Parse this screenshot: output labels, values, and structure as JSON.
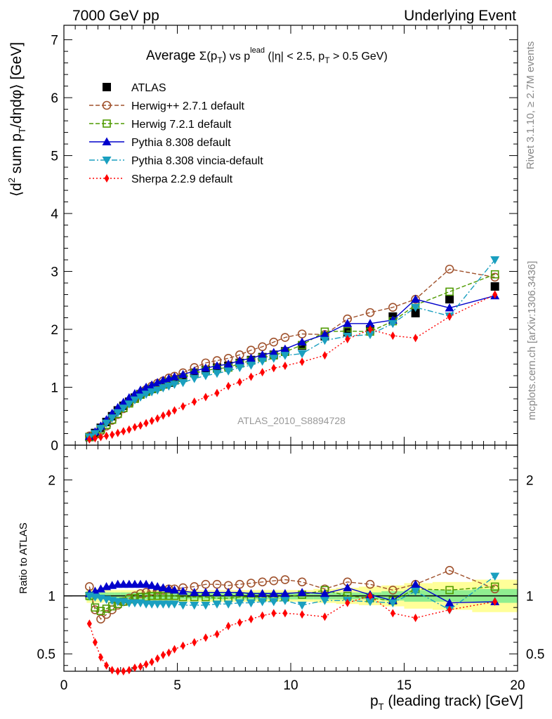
{
  "header": {
    "left": "7000 GeV pp",
    "right": "Underlying Event"
  },
  "side": {
    "rivet": "Rivet 3.1.10, ≥ 2.7M events",
    "mcplots": "mcplots.cern.ch [arXiv:1306.3436]"
  },
  "colors": {
    "atlas": "#000000",
    "herwigpp": "#a0522d",
    "herwig7": "#4f9a00",
    "pythia": "#0000cc",
    "vincia": "#1a9fbf",
    "sherpa": "#ff0000",
    "band_outer": "#ffff99",
    "band_inner": "#90ee90"
  },
  "chart_data": [
    {
      "type": "line",
      "title": "Average Σ(p_T) vs p_T^lead (|η| < 2.5, p_T > 0.5 GeV)",
      "title_parts": {
        "lead": "Average ",
        "sigma": "Σ(p",
        "sub_T": "T",
        "close": ")",
        "vs": " vs p",
        "sup_lead": "lead",
        "tail": " (|η| < 2.5, p",
        "tail_end": " > 0.5 GeV)"
      },
      "ylabel": "⟨d² sum p_T/dηdφ⟩ [GeV]",
      "ylabel_parts": {
        "open": "⟨d",
        "sup2": "2",
        "mid": " sum p",
        "sub_T": "T",
        "close": "/dηdφ⟩ [GeV]"
      },
      "watermark": "ATLAS_2010_S8894728",
      "xlim": [
        0,
        20
      ],
      "ylim": [
        0,
        7.25
      ],
      "yticks": [
        0,
        1,
        2,
        3,
        4,
        5,
        6,
        7
      ],
      "legend_position": "top-left",
      "grid": false,
      "x": [
        1.125,
        1.375,
        1.625,
        1.875,
        2.125,
        2.375,
        2.625,
        2.875,
        3.125,
        3.375,
        3.625,
        3.875,
        4.125,
        4.375,
        4.625,
        4.875,
        5.25,
        5.75,
        6.25,
        6.75,
        7.25,
        7.75,
        8.25,
        8.75,
        9.25,
        9.75,
        10.5,
        11.5,
        12.5,
        13.5,
        14.5,
        15.5,
        17.0,
        19.0
      ],
      "series": [
        {
          "name": "ATLAS",
          "key": "atlas",
          "marker": "square-filled",
          "values": [
            0.14,
            0.21,
            0.3,
            0.4,
            0.5,
            0.6,
            0.68,
            0.75,
            0.82,
            0.88,
            0.93,
            0.97,
            1.01,
            1.05,
            1.08,
            1.12,
            1.17,
            1.25,
            1.3,
            1.34,
            1.37,
            1.42,
            1.47,
            1.52,
            1.56,
            1.62,
            1.72,
            1.88,
            1.95,
            2.0,
            2.22,
            2.28,
            2.52,
            2.74
          ]
        },
        {
          "name": "Herwig++ 2.7.1 default",
          "key": "herwigpp",
          "marker": "circle-open",
          "dash": "6,3",
          "values": [
            0.16,
            0.19,
            0.24,
            0.33,
            0.43,
            0.53,
            0.63,
            0.73,
            0.81,
            0.89,
            0.96,
            1.02,
            1.07,
            1.11,
            1.16,
            1.19,
            1.25,
            1.34,
            1.42,
            1.46,
            1.5,
            1.56,
            1.64,
            1.7,
            1.78,
            1.86,
            1.92,
            1.91,
            2.18,
            2.29,
            2.38,
            2.52,
            3.04,
            2.9
          ]
        },
        {
          "name": "Herwig 7.2.1 default",
          "key": "herwig7",
          "marker": "square-open",
          "dash": "6,3",
          "values": [
            0.14,
            0.19,
            0.27,
            0.35,
            0.44,
            0.54,
            0.64,
            0.72,
            0.8,
            0.87,
            0.92,
            0.97,
            1.01,
            1.05,
            1.09,
            1.12,
            1.16,
            1.24,
            1.29,
            1.32,
            1.34,
            1.41,
            1.46,
            1.51,
            1.55,
            1.61,
            1.73,
            1.96,
            1.97,
            1.96,
            2.14,
            2.42,
            2.65,
            2.95
          ]
        },
        {
          "name": "Pythia 8.308 default",
          "key": "pythia",
          "marker": "triangle-up",
          "dash": "",
          "values": [
            0.15,
            0.23,
            0.33,
            0.44,
            0.55,
            0.65,
            0.74,
            0.82,
            0.89,
            0.95,
            1.0,
            1.04,
            1.08,
            1.12,
            1.15,
            1.18,
            1.22,
            1.28,
            1.33,
            1.37,
            1.4,
            1.46,
            1.5,
            1.56,
            1.6,
            1.66,
            1.78,
            1.91,
            2.1,
            2.1,
            2.16,
            2.52,
            2.37,
            2.58
          ]
        },
        {
          "name": "Pythia 8.308 vincia-default",
          "key": "vincia",
          "marker": "triangle-down",
          "dash": "8,3,2,3",
          "values": [
            0.14,
            0.2,
            0.29,
            0.38,
            0.47,
            0.56,
            0.64,
            0.71,
            0.78,
            0.83,
            0.88,
            0.92,
            0.95,
            0.99,
            1.02,
            1.05,
            1.08,
            1.15,
            1.2,
            1.24,
            1.28,
            1.34,
            1.38,
            1.45,
            1.5,
            1.55,
            1.58,
            1.81,
            1.88,
            1.91,
            2.1,
            2.38,
            2.23,
            3.2
          ]
        },
        {
          "name": "Sherpa 2.2.9 default",
          "key": "sherpa",
          "marker": "diamond-filled",
          "dash": "2,3",
          "values": [
            0.1,
            0.12,
            0.14,
            0.16,
            0.18,
            0.21,
            0.24,
            0.27,
            0.31,
            0.34,
            0.38,
            0.42,
            0.46,
            0.51,
            0.55,
            0.6,
            0.67,
            0.75,
            0.83,
            0.9,
            1.02,
            1.09,
            1.18,
            1.26,
            1.33,
            1.37,
            1.44,
            1.55,
            1.83,
            2.0,
            1.89,
            1.85,
            2.22,
            2.6
          ]
        }
      ]
    },
    {
      "type": "line",
      "title": "",
      "xlabel": "p_T (leading track) [GeV]",
      "xlabel_parts": {
        "p": "p",
        "sub_T": "T",
        "rest": " (leading track) [GeV]"
      },
      "ylabel": "Ratio to ATLAS",
      "xlim": [
        0,
        20
      ],
      "ylim": [
        0.35,
        2.3
      ],
      "xticks": [
        0,
        5,
        10,
        15,
        20
      ],
      "yticks": [
        0.5,
        1,
        2
      ],
      "grid": false,
      "uncertainty_band_width": {
        "x": [
          1.125,
          1.375,
          1.625,
          1.875,
          2.125,
          2.375,
          2.625,
          2.875,
          3.125,
          3.375,
          3.625,
          3.875,
          4.125,
          4.375,
          4.625,
          4.875,
          5.25,
          5.75,
          6.25,
          6.75,
          7.25,
          7.75,
          8.25,
          8.75,
          9.25,
          9.75,
          10.5,
          11.5,
          12.5,
          13.5,
          14.5,
          15.5,
          17.0,
          19.0
        ],
        "outer": [
          0.06,
          0.06,
          0.06,
          0.05,
          0.05,
          0.05,
          0.05,
          0.05,
          0.05,
          0.05,
          0.05,
          0.05,
          0.05,
          0.05,
          0.05,
          0.05,
          0.05,
          0.05,
          0.05,
          0.05,
          0.05,
          0.05,
          0.05,
          0.05,
          0.05,
          0.05,
          0.05,
          0.06,
          0.07,
          0.08,
          0.09,
          0.11,
          0.12,
          0.14
        ],
        "inner": [
          0.04,
          0.03,
          0.03,
          0.03,
          0.03,
          0.03,
          0.03,
          0.03,
          0.03,
          0.03,
          0.03,
          0.03,
          0.03,
          0.03,
          0.03,
          0.03,
          0.03,
          0.03,
          0.03,
          0.03,
          0.03,
          0.03,
          0.03,
          0.03,
          0.03,
          0.03,
          0.03,
          0.03,
          0.03,
          0.03,
          0.04,
          0.05,
          0.05,
          0.06
        ]
      },
      "x": [
        1.125,
        1.375,
        1.625,
        1.875,
        2.125,
        2.375,
        2.625,
        2.875,
        3.125,
        3.375,
        3.625,
        3.875,
        4.125,
        4.375,
        4.625,
        4.875,
        5.25,
        5.75,
        6.25,
        6.75,
        7.25,
        7.75,
        8.25,
        8.75,
        9.25,
        9.75,
        10.5,
        11.5,
        12.5,
        13.5,
        14.5,
        15.5,
        17.0,
        19.0
      ],
      "series": [
        {
          "name": "Herwig++ 2.7.1 default",
          "key": "herwigpp",
          "marker": "circle-open",
          "dash": "6,3",
          "values": [
            1.08,
            0.88,
            0.8,
            0.84,
            0.88,
            0.92,
            0.95,
            0.98,
            1.0,
            1.02,
            1.03,
            1.04,
            1.05,
            1.05,
            1.06,
            1.06,
            1.07,
            1.08,
            1.1,
            1.1,
            1.09,
            1.1,
            1.11,
            1.12,
            1.13,
            1.14,
            1.12,
            1.06,
            1.12,
            1.1,
            1.05,
            1.1,
            1.22,
            1.06
          ]
        },
        {
          "name": "Herwig 7.2.1 default",
          "key": "herwig7",
          "marker": "square-open",
          "dash": "6,3",
          "values": [
            1.0,
            0.9,
            0.87,
            0.89,
            0.91,
            0.93,
            0.95,
            0.97,
            0.98,
            0.99,
            0.99,
            1.0,
            1.0,
            1.0,
            1.0,
            1.0,
            0.99,
            0.99,
            0.99,
            0.98,
            0.98,
            0.99,
            0.99,
            0.99,
            0.99,
            0.99,
            1.01,
            1.05,
            1.0,
            0.98,
            0.96,
            1.06,
            1.05,
            1.08
          ]
        },
        {
          "name": "Pythia 8.308 default",
          "key": "pythia",
          "marker": "triangle-up",
          "dash": "",
          "values": [
            1.02,
            1.04,
            1.06,
            1.08,
            1.09,
            1.1,
            1.1,
            1.1,
            1.1,
            1.1,
            1.1,
            1.09,
            1.08,
            1.07,
            1.06,
            1.05,
            1.04,
            1.03,
            1.03,
            1.03,
            1.03,
            1.03,
            1.02,
            1.02,
            1.02,
            1.02,
            1.03,
            1.02,
            1.07,
            1.01,
            0.96,
            1.1,
            0.94,
            0.95
          ]
        },
        {
          "name": "Pythia 8.308 vincia-default",
          "key": "vincia",
          "marker": "triangle-down",
          "dash": "8,3,2,3",
          "values": [
            1.0,
            0.99,
            0.98,
            0.97,
            0.96,
            0.95,
            0.95,
            0.94,
            0.94,
            0.94,
            0.93,
            0.93,
            0.93,
            0.93,
            0.93,
            0.93,
            0.92,
            0.92,
            0.92,
            0.93,
            0.93,
            0.94,
            0.94,
            0.95,
            0.95,
            0.96,
            0.92,
            0.96,
            0.96,
            0.95,
            0.94,
            1.04,
            0.88,
            1.17
          ]
        },
        {
          "name": "Sherpa 2.2.9 default",
          "key": "sherpa",
          "marker": "diamond-filled",
          "dash": "2,3",
          "values": [
            0.76,
            0.6,
            0.47,
            0.4,
            0.36,
            0.35,
            0.35,
            0.36,
            0.38,
            0.39,
            0.41,
            0.43,
            0.46,
            0.49,
            0.51,
            0.54,
            0.57,
            0.6,
            0.64,
            0.67,
            0.74,
            0.77,
            0.8,
            0.83,
            0.85,
            0.85,
            0.84,
            0.82,
            0.94,
            1.0,
            0.85,
            0.81,
            0.88,
            0.95
          ]
        }
      ]
    }
  ]
}
